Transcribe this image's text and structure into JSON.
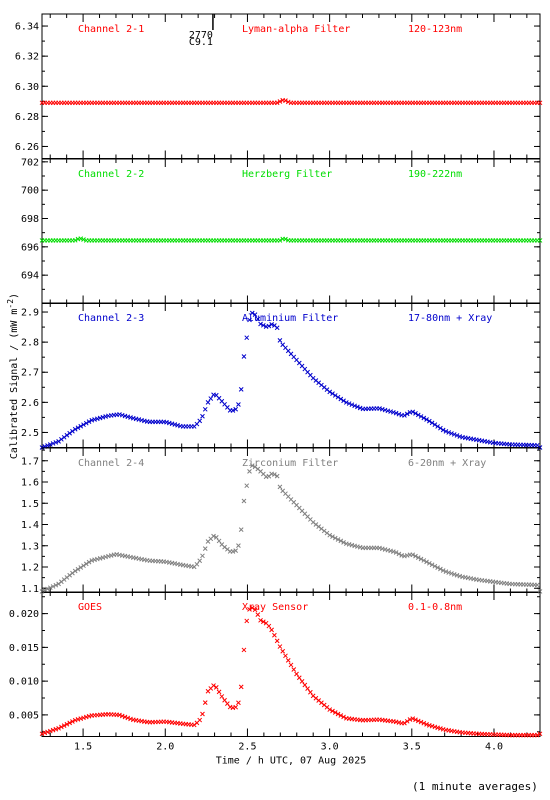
{
  "footnote": "(1 minute averages)",
  "chart_data": {
    "type": "scatter",
    "xlabel": "Time / h UTC, 07 Aug 2025",
    "xlim": [
      1.25,
      4.28
    ],
    "x_ticks": [
      1.5,
      2.0,
      2.5,
      3.0,
      3.5,
      4.0
    ],
    "x_tick_labels": [
      "1.5",
      "2.0",
      "2.5",
      "3.0",
      "3.5",
      "4.0"
    ],
    "ylabel_shared": "Calibrated Signal / (mW m",
    "ylabel_sup": "-2",
    "ylabel_close": ")",
    "marker_annotation": {
      "x": 2.29,
      "text_top": "2770",
      "text_bottom": "C9.1"
    },
    "panels": [
      {
        "channel": "Channel 2-1",
        "filter": "Lyman-alpha Filter",
        "band": "120-123nm",
        "color": "#ff0000",
        "ylim": [
          6.252,
          6.348
        ],
        "y_ticks": [
          6.26,
          6.28,
          6.3,
          6.32,
          6.34
        ],
        "y_tick_labels": [
          "6.26",
          "6.28",
          "6.30",
          "6.32",
          "6.34"
        ],
        "points": [
          [
            1.25,
            6.289
          ],
          [
            1.5,
            6.289
          ],
          [
            2.0,
            6.289
          ],
          [
            2.5,
            6.289
          ],
          [
            2.68,
            6.289
          ],
          [
            2.72,
            6.291
          ],
          [
            2.76,
            6.289
          ],
          [
            3.0,
            6.289
          ],
          [
            3.5,
            6.289
          ],
          [
            4.0,
            6.289
          ],
          [
            4.28,
            6.289
          ]
        ]
      },
      {
        "channel": "Channel 2-2",
        "filter": "Herzberg Filter",
        "band": "190-222nm",
        "color": "#00dd00",
        "ylim": [
          692.0,
          702.2
        ],
        "y_ticks": [
          694,
          696,
          698,
          700,
          702
        ],
        "y_tick_labels": [
          "694",
          "696",
          "698",
          "700",
          "702"
        ],
        "points": [
          [
            1.25,
            696.45
          ],
          [
            1.45,
            696.45
          ],
          [
            1.48,
            696.6
          ],
          [
            1.52,
            696.45
          ],
          [
            2.0,
            696.45
          ],
          [
            2.5,
            696.45
          ],
          [
            2.7,
            696.45
          ],
          [
            2.72,
            696.6
          ],
          [
            2.75,
            696.45
          ],
          [
            3.0,
            696.45
          ],
          [
            3.5,
            696.45
          ],
          [
            4.0,
            696.45
          ],
          [
            4.28,
            696.45
          ]
        ]
      },
      {
        "channel": "Channel 2-3",
        "filter": "Aluminium Filter",
        "band": "17-80nm + Xray",
        "color": "#0000cc",
        "ylim": [
          2.45,
          2.93
        ],
        "y_ticks": [
          2.5,
          2.6,
          2.7,
          2.8,
          2.9
        ],
        "y_tick_labels": [
          "2.5",
          "2.6",
          "2.7",
          "2.8",
          "2.9"
        ],
        "points": [
          [
            1.25,
            2.45
          ],
          [
            1.35,
            2.47
          ],
          [
            1.45,
            2.51
          ],
          [
            1.55,
            2.54
          ],
          [
            1.65,
            2.555
          ],
          [
            1.72,
            2.56
          ],
          [
            1.8,
            2.548
          ],
          [
            1.9,
            2.535
          ],
          [
            2.0,
            2.535
          ],
          [
            2.1,
            2.52
          ],
          [
            2.18,
            2.52
          ],
          [
            2.22,
            2.545
          ],
          [
            2.26,
            2.6
          ],
          [
            2.3,
            2.63
          ],
          [
            2.35,
            2.6
          ],
          [
            2.4,
            2.57
          ],
          [
            2.44,
            2.58
          ],
          [
            2.46,
            2.63
          ],
          [
            2.48,
            2.76
          ],
          [
            2.5,
            2.83
          ],
          [
            2.52,
            2.9
          ],
          [
            2.55,
            2.89
          ],
          [
            2.58,
            2.86
          ],
          [
            2.62,
            2.85
          ],
          [
            2.65,
            2.86
          ],
          [
            2.68,
            2.85
          ],
          [
            2.7,
            2.8
          ],
          [
            2.8,
            2.74
          ],
          [
            2.9,
            2.68
          ],
          [
            3.0,
            2.635
          ],
          [
            3.1,
            2.6
          ],
          [
            3.2,
            2.578
          ],
          [
            3.3,
            2.58
          ],
          [
            3.4,
            2.565
          ],
          [
            3.45,
            2.555
          ],
          [
            3.5,
            2.57
          ],
          [
            3.6,
            2.54
          ],
          [
            3.7,
            2.505
          ],
          [
            3.8,
            2.485
          ],
          [
            3.9,
            2.475
          ],
          [
            4.0,
            2.465
          ],
          [
            4.1,
            2.46
          ],
          [
            4.28,
            2.457
          ]
        ]
      },
      {
        "channel": "Channel 2-4",
        "filter": "Zirconium Filter",
        "band": "6-20nm + Xray",
        "color": "#808080",
        "ylim": [
          1.08,
          1.76
        ],
        "y_ticks": [
          1.1,
          1.2,
          1.3,
          1.4,
          1.5,
          1.6,
          1.7
        ],
        "y_tick_labels": [
          "1.1",
          "1.2",
          "1.3",
          "1.4",
          "1.5",
          "1.6",
          "1.7"
        ],
        "points": [
          [
            1.25,
            1.085
          ],
          [
            1.35,
            1.12
          ],
          [
            1.45,
            1.18
          ],
          [
            1.55,
            1.23
          ],
          [
            1.65,
            1.25
          ],
          [
            1.7,
            1.26
          ],
          [
            1.8,
            1.245
          ],
          [
            1.9,
            1.23
          ],
          [
            2.0,
            1.225
          ],
          [
            2.1,
            1.21
          ],
          [
            2.18,
            1.2
          ],
          [
            2.22,
            1.24
          ],
          [
            2.26,
            1.32
          ],
          [
            2.3,
            1.35
          ],
          [
            2.35,
            1.3
          ],
          [
            2.4,
            1.27
          ],
          [
            2.44,
            1.28
          ],
          [
            2.46,
            1.36
          ],
          [
            2.48,
            1.52
          ],
          [
            2.5,
            1.6
          ],
          [
            2.52,
            1.68
          ],
          [
            2.55,
            1.67
          ],
          [
            2.58,
            1.65
          ],
          [
            2.62,
            1.62
          ],
          [
            2.65,
            1.64
          ],
          [
            2.68,
            1.63
          ],
          [
            2.7,
            1.57
          ],
          [
            2.8,
            1.49
          ],
          [
            2.9,
            1.41
          ],
          [
            3.0,
            1.35
          ],
          [
            3.1,
            1.31
          ],
          [
            3.2,
            1.29
          ],
          [
            3.3,
            1.29
          ],
          [
            3.4,
            1.27
          ],
          [
            3.45,
            1.25
          ],
          [
            3.5,
            1.26
          ],
          [
            3.6,
            1.22
          ],
          [
            3.7,
            1.18
          ],
          [
            3.8,
            1.155
          ],
          [
            3.9,
            1.14
          ],
          [
            4.0,
            1.13
          ],
          [
            4.1,
            1.12
          ],
          [
            4.28,
            1.115
          ]
        ]
      },
      {
        "channel": "GOES",
        "filter": "Xray Sensor",
        "band": "0.1-0.8nm",
        "color": "#ff0000",
        "ylim": [
          0.0018,
          0.0232
        ],
        "y_ticks": [
          0.005,
          0.01,
          0.015,
          0.02
        ],
        "y_tick_labels": [
          "0.005",
          "0.010",
          "0.015",
          "0.020"
        ],
        "points": [
          [
            1.25,
            0.0022
          ],
          [
            1.35,
            0.003
          ],
          [
            1.45,
            0.0042
          ],
          [
            1.55,
            0.0049
          ],
          [
            1.65,
            0.0051
          ],
          [
            1.72,
            0.005
          ],
          [
            1.8,
            0.0043
          ],
          [
            1.9,
            0.0039
          ],
          [
            2.0,
            0.004
          ],
          [
            2.1,
            0.0037
          ],
          [
            2.18,
            0.0035
          ],
          [
            2.22,
            0.0045
          ],
          [
            2.26,
            0.0085
          ],
          [
            2.3,
            0.0095
          ],
          [
            2.35,
            0.0075
          ],
          [
            2.4,
            0.006
          ],
          [
            2.44,
            0.0062
          ],
          [
            2.46,
            0.0085
          ],
          [
            2.48,
            0.015
          ],
          [
            2.5,
            0.02
          ],
          [
            2.52,
            0.021
          ],
          [
            2.55,
            0.0205
          ],
          [
            2.58,
            0.019
          ],
          [
            2.62,
            0.0185
          ],
          [
            2.65,
            0.0175
          ],
          [
            2.7,
            0.015
          ],
          [
            2.8,
            0.011
          ],
          [
            2.9,
            0.0078
          ],
          [
            3.0,
            0.0058
          ],
          [
            3.1,
            0.0045
          ],
          [
            3.2,
            0.0042
          ],
          [
            3.3,
            0.0043
          ],
          [
            3.4,
            0.004
          ],
          [
            3.45,
            0.0037
          ],
          [
            3.5,
            0.0045
          ],
          [
            3.6,
            0.0035
          ],
          [
            3.7,
            0.0028
          ],
          [
            3.8,
            0.0024
          ],
          [
            3.9,
            0.0022
          ],
          [
            4.0,
            0.0021
          ],
          [
            4.1,
            0.002
          ],
          [
            4.28,
            0.002
          ]
        ]
      }
    ]
  }
}
